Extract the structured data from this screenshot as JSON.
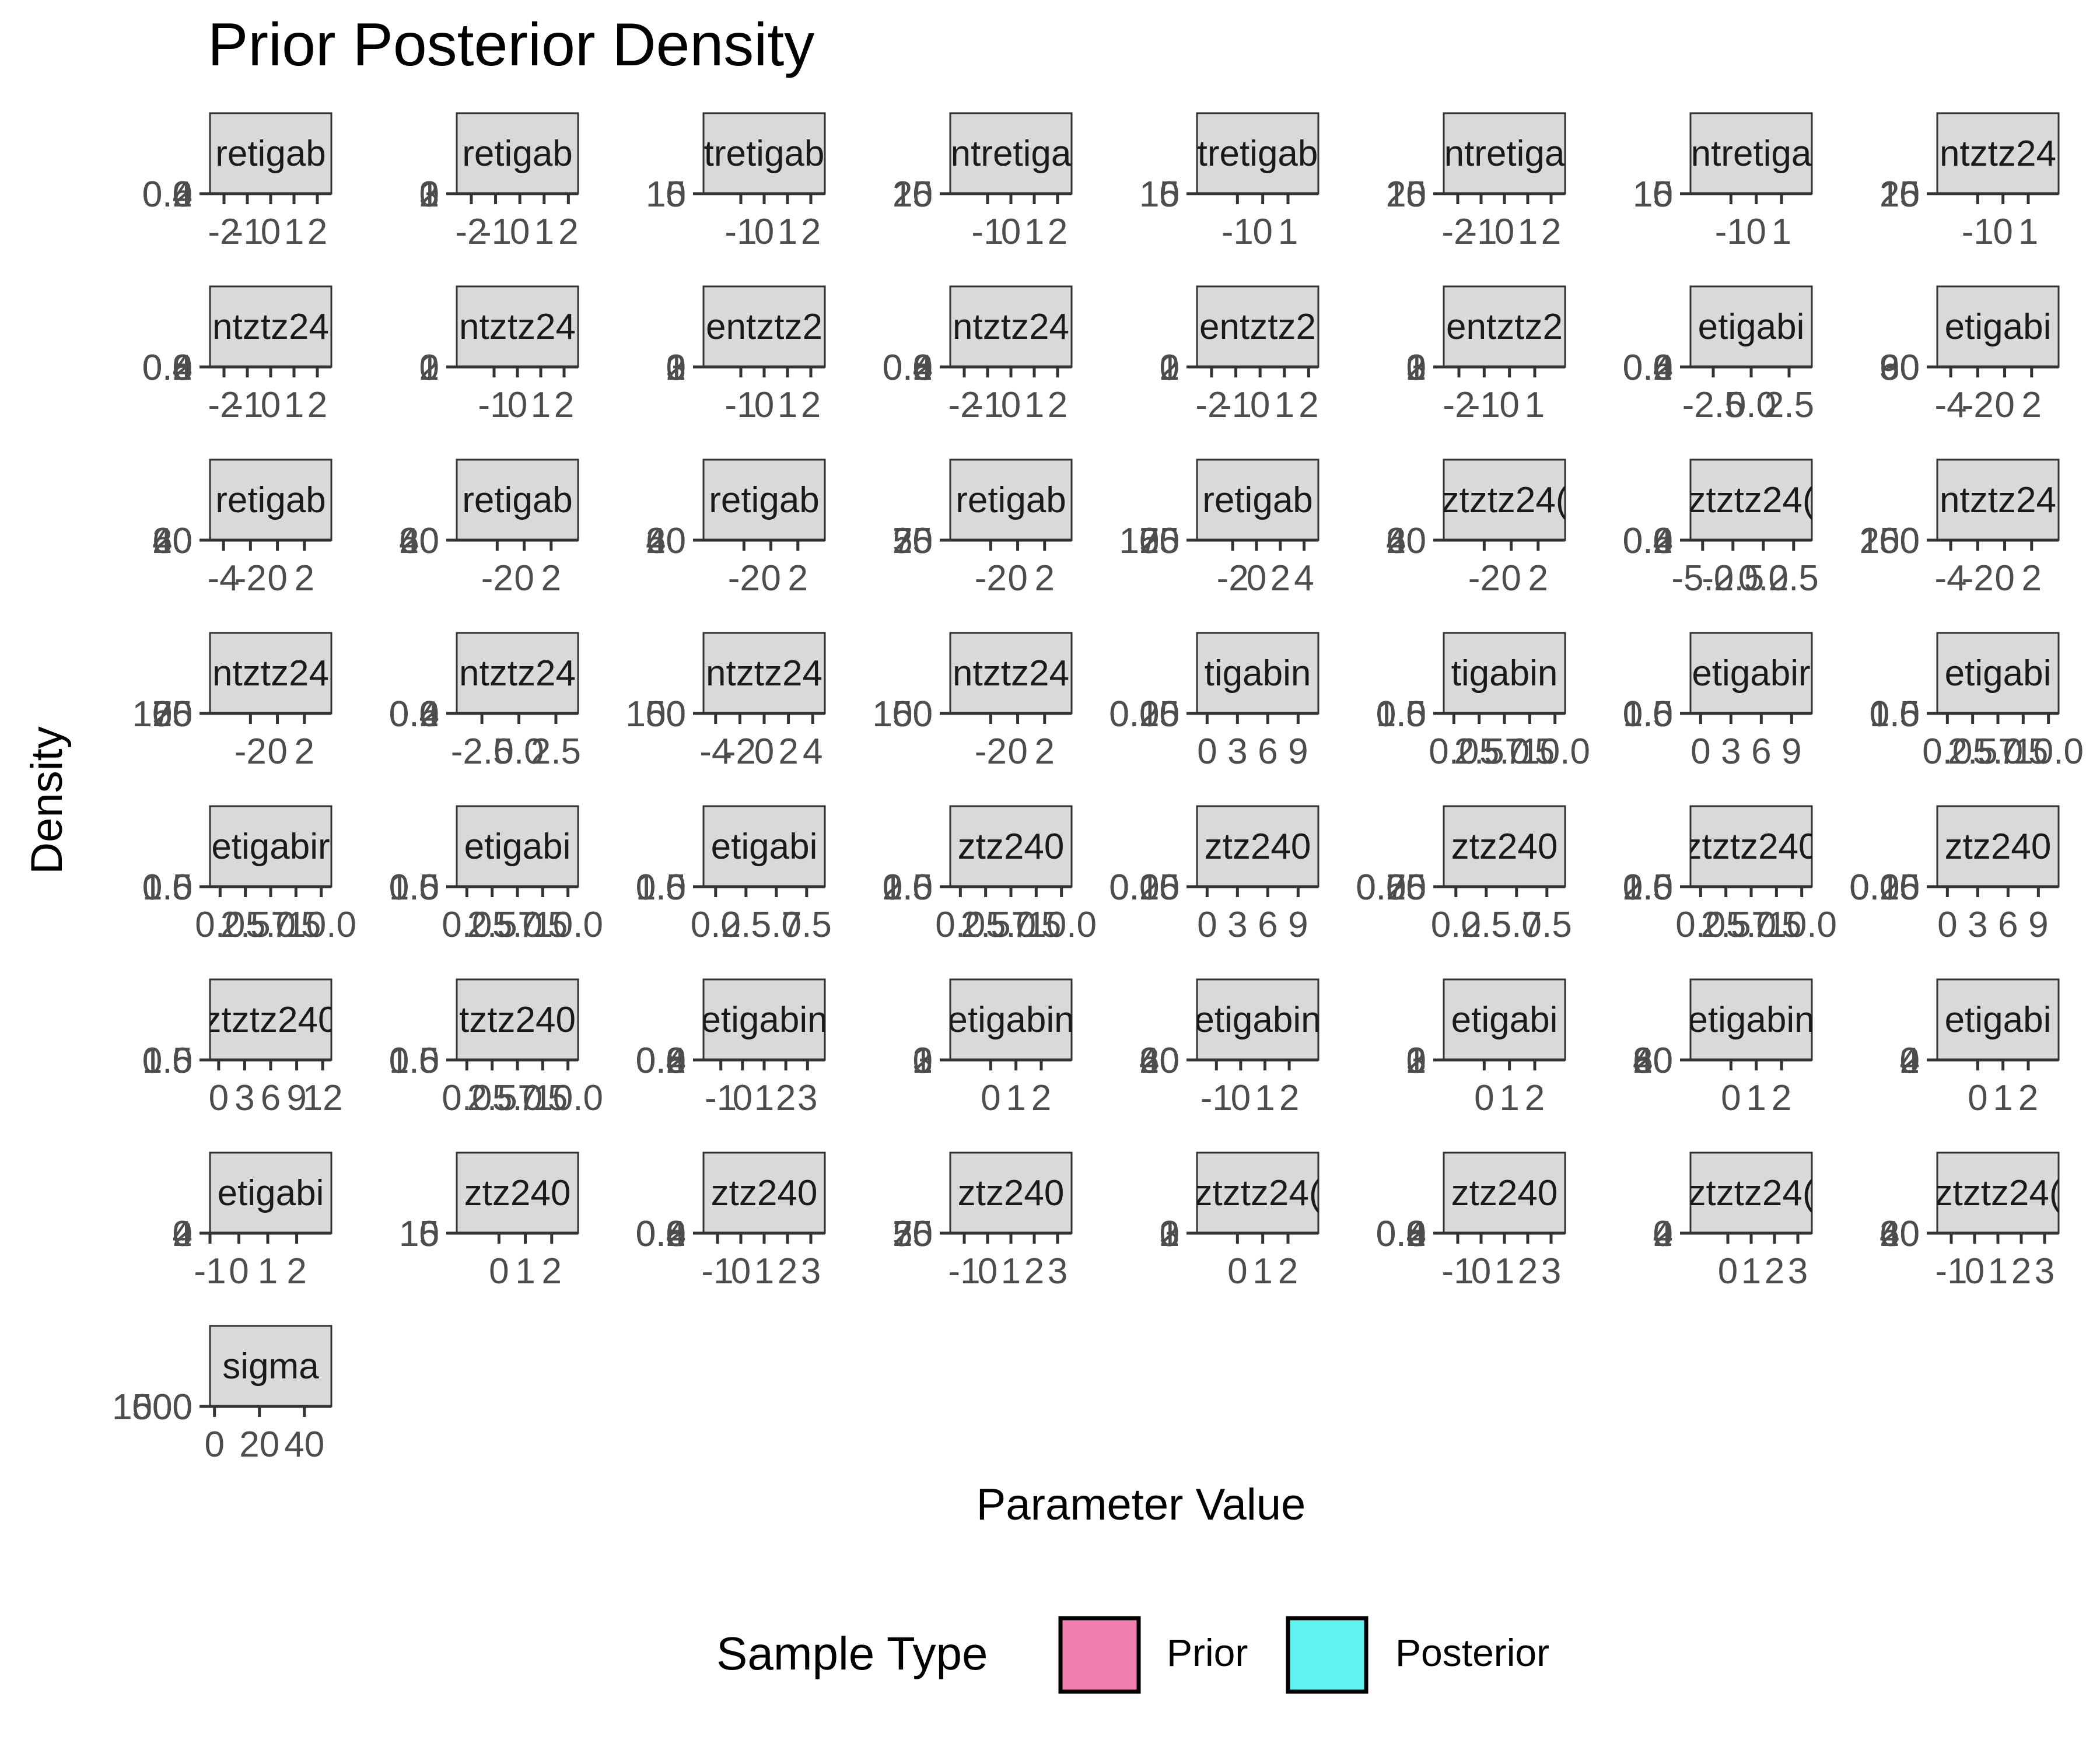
{
  "chart_data": {
    "type": "facet-density",
    "title": "Prior Posterior Density",
    "xlabel": "Parameter Value",
    "ylabel": "Density",
    "legend": {
      "title": "Sample Type",
      "placement": "bottom",
      "entries": [
        {
          "name": "Prior",
          "color": "#F080B0"
        },
        {
          "name": "Posterior",
          "color": "#5EF2F0"
        }
      ]
    },
    "series": [
      {
        "name": "Prior"
      },
      {
        "name": "Posterior"
      }
    ],
    "panels": [
      {
        "label": "retigab",
        "xticks": [
          "-2",
          "-1",
          "0",
          "1",
          "2"
        ],
        "xlim": [
          -2.6,
          2.6
        ],
        "ylabels": [
          "0.6",
          "0.4",
          "0.2",
          "0.0"
        ]
      },
      {
        "label": "retigab",
        "xticks": [
          "-2",
          "-1",
          "0",
          "1",
          "2"
        ],
        "xlim": [
          -2.6,
          2.4
        ],
        "ylabels": [
          "3",
          "2",
          "1",
          "0"
        ]
      },
      {
        "label": "tretigab",
        "xticks": [
          "-1",
          "0",
          "1",
          "2"
        ],
        "xlim": [
          -2.6,
          2.6
        ],
        "ylabels": [
          "15",
          "10",
          "5",
          "0"
        ]
      },
      {
        "label": "ntretiga",
        "xticks": [
          "-1",
          "0",
          "1",
          "2"
        ],
        "xlim": [
          -2.6,
          2.6
        ],
        "ylabels": [
          "20",
          "15",
          "10",
          "5",
          "0"
        ]
      },
      {
        "label": "tretigab",
        "xticks": [
          "-1",
          "0",
          "1"
        ],
        "xlim": [
          -2.6,
          2.2
        ],
        "ylabels": [
          "15",
          "10",
          "5",
          "0"
        ]
      },
      {
        "label": "ntretiga",
        "xticks": [
          "-2",
          "-1",
          "0",
          "1",
          "2"
        ],
        "xlim": [
          -2.6,
          2.6
        ],
        "ylabels": [
          "20",
          "15",
          "10",
          "5",
          "0"
        ]
      },
      {
        "label": "ntretiga",
        "xticks": [
          "-1",
          "0",
          "1"
        ],
        "xlim": [
          -2.6,
          2.2
        ],
        "ylabels": [
          "15",
          "10",
          "5",
          "0"
        ]
      },
      {
        "label": "ntztz24",
        "xticks": [
          "-1",
          "0",
          "1"
        ],
        "xlim": [
          -2.6,
          2.2
        ],
        "ylabels": [
          "20",
          "15",
          "10",
          "5",
          "0"
        ]
      },
      {
        "label": "ntztz24",
        "xticks": [
          "-2",
          "-1",
          "0",
          "1",
          "2"
        ],
        "xlim": [
          -2.6,
          2.6
        ],
        "ylabels": [
          "0.8",
          "0.6",
          "0.4",
          "0.2",
          "0.0"
        ]
      },
      {
        "label": "ntztz24",
        "xticks": [
          "-1",
          "0",
          "1",
          "2"
        ],
        "xlim": [
          -2.6,
          2.6
        ],
        "ylabels": [
          "2",
          "1",
          "0"
        ]
      },
      {
        "label": "entztz2",
        "xticks": [
          "-1",
          "0",
          "1",
          "2"
        ],
        "xlim": [
          -2.6,
          2.6
        ],
        "ylabels": [
          "3",
          "2",
          "1",
          "0"
        ]
      },
      {
        "label": "ntztz24",
        "xticks": [
          "-2",
          "-1",
          "0",
          "1",
          "2"
        ],
        "xlim": [
          -2.6,
          2.6
        ],
        "ylabels": [
          "0.8",
          "0.6",
          "0.4",
          "0.2",
          "0.0"
        ]
      },
      {
        "label": "entztz2",
        "xticks": [
          "-2",
          "-1",
          "0",
          "1",
          "2"
        ],
        "xlim": [
          -2.6,
          2.4
        ],
        "ylabels": [
          "2",
          "1",
          "0"
        ]
      },
      {
        "label": "entztz2",
        "xticks": [
          "-2",
          "-1",
          "0",
          "1"
        ],
        "xlim": [
          -2.6,
          2.2
        ],
        "ylabels": [
          "3",
          "2",
          "1",
          "0"
        ]
      },
      {
        "label": "etigabi",
        "xticks": [
          "-2.5",
          "0.0",
          "2.5"
        ],
        "xlim": [
          -4.0,
          4.0
        ],
        "ylabels": [
          "0.6",
          "0.4",
          "0.2",
          "0.0"
        ]
      },
      {
        "label": "etigabi",
        "xticks": [
          "-4",
          "-2",
          "0",
          "2"
        ],
        "xlim": [
          -5.0,
          4.0
        ],
        "ylabels": [
          "90",
          "60",
          "30",
          "0"
        ]
      },
      {
        "label": "retigab",
        "xticks": [
          "-4",
          "-2",
          "0",
          "2"
        ],
        "xlim": [
          -5.0,
          4.0
        ],
        "ylabels": [
          "60",
          "40",
          "20",
          "0"
        ]
      },
      {
        "label": "retigab",
        "xticks": [
          "-2",
          "0",
          "2"
        ],
        "xlim": [
          -5.0,
          4.0
        ],
        "ylabels": [
          "60",
          "40",
          "20",
          "0"
        ]
      },
      {
        "label": "retigab",
        "xticks": [
          "-2",
          "0",
          "2"
        ],
        "xlim": [
          -5.0,
          4.0
        ],
        "ylabels": [
          "60",
          "40",
          "20",
          "0"
        ]
      },
      {
        "label": "retigab",
        "xticks": [
          "-2",
          "0",
          "2"
        ],
        "xlim": [
          -5.0,
          4.0
        ],
        "ylabels": [
          "75",
          "50",
          "25",
          "0"
        ]
      },
      {
        "label": "retigab",
        "xticks": [
          "-2",
          "0",
          "2",
          "4"
        ],
        "xlim": [
          -5.0,
          5.2
        ],
        "ylabels": [
          "100",
          "75",
          "50",
          "25",
          "0"
        ]
      },
      {
        "label": "ztztz24(",
        "xticks": [
          "-2",
          "0",
          "2"
        ],
        "xlim": [
          -5.0,
          4.0
        ],
        "ylabels": [
          "60",
          "40",
          "20",
          "0"
        ]
      },
      {
        "label": "ztztz24(",
        "xticks": [
          "-5.0",
          "-2.5",
          "0.0",
          "2.5"
        ],
        "xlim": [
          -6.0,
          4.0
        ],
        "ylabels": [
          "0.6",
          "0.4",
          "0.2",
          "0.0"
        ]
      },
      {
        "label": "ntztz24",
        "xticks": [
          "-4",
          "-2",
          "0",
          "2"
        ],
        "xlim": [
          -5.0,
          4.0
        ],
        "ylabels": [
          "200",
          "150",
          "100",
          "50",
          "0"
        ]
      },
      {
        "label": "ntztz24",
        "xticks": [
          "-2",
          "0",
          "2"
        ],
        "xlim": [
          -5.0,
          4.0
        ],
        "ylabels": [
          "100",
          "75",
          "50",
          "25",
          "0"
        ]
      },
      {
        "label": "ntztz24",
        "xticks": [
          "-2.5",
          "0.0",
          "2.5"
        ],
        "xlim": [
          -4.2,
          4.0
        ],
        "ylabels": [
          "0.6",
          "0.4",
          "0.2",
          "0.0"
        ]
      },
      {
        "label": "ntztz24",
        "xticks": [
          "-4",
          "-2",
          "0",
          "2",
          "4"
        ],
        "xlim": [
          -5.0,
          5.0
        ],
        "ylabels": [
          "150",
          "100",
          "50",
          "0"
        ]
      },
      {
        "label": "ntztz24",
        "xticks": [
          "-2",
          "0",
          "2"
        ],
        "xlim": [
          -5.0,
          4.0
        ],
        "ylabels": [
          "150",
          "100",
          "50",
          "0"
        ]
      },
      {
        "label": "tigabin",
        "xticks": [
          "0",
          "3",
          "6",
          "9"
        ],
        "xlim": [
          -1.0,
          11.0
        ],
        "ylabels": [
          "0.20",
          "0.15",
          "0.10",
          "0.05",
          "0.00"
        ]
      },
      {
        "label": "tigabin",
        "xticks": [
          "0.0",
          "2.5",
          "5.0",
          "7.5",
          "10.0"
        ],
        "xlim": [
          -1.0,
          11.0
        ],
        "ylabels": [
          "1.5",
          "1.0",
          "0.5",
          "0.0"
        ]
      },
      {
        "label": "etigabir",
        "xticks": [
          "0",
          "3",
          "6",
          "9"
        ],
        "xlim": [
          -1.0,
          11.0
        ],
        "ylabels": [
          "1.5",
          "1.0",
          "0.5",
          "0.0"
        ]
      },
      {
        "label": "etigabi",
        "xticks": [
          "0.0",
          "2.5",
          "5.0",
          "7.5",
          "10.0"
        ],
        "xlim": [
          -1.0,
          11.0
        ],
        "ylabels": [
          "1.5",
          "1.0",
          "0.5",
          "0.0"
        ]
      },
      {
        "label": "etigabir",
        "xticks": [
          "0.0",
          "2.5",
          "5.0",
          "7.5",
          "10.0"
        ],
        "xlim": [
          -1.0,
          11.0
        ],
        "ylabels": [
          "1.5",
          "1.0",
          "0.5",
          "0.0"
        ]
      },
      {
        "label": "etigabi",
        "xticks": [
          "0.0",
          "2.5",
          "5.0",
          "7.5",
          "10.0"
        ],
        "xlim": [
          -1.0,
          11.0
        ],
        "ylabels": [
          "1.5",
          "1.0",
          "0.5",
          "0.0"
        ]
      },
      {
        "label": "etigabi",
        "xticks": [
          "0.0",
          "2.5",
          "5.0",
          "7.5"
        ],
        "xlim": [
          -1.0,
          9.0
        ],
        "ylabels": [
          "1.5",
          "1.0",
          "0.5",
          "0.0"
        ]
      },
      {
        "label": "ztz240",
        "xticks": [
          "0.0",
          "2.5",
          "5.0",
          "7.5",
          "10.0"
        ],
        "xlim": [
          -1.0,
          11.0
        ],
        "ylabels": [
          "2.0",
          "1.5",
          "1.0",
          "0.5",
          "0.0"
        ]
      },
      {
        "label": "ztz240",
        "xticks": [
          "0",
          "3",
          "6",
          "9"
        ],
        "xlim": [
          -1.0,
          11.0
        ],
        "ylabels": [
          "0.20",
          "0.15",
          "0.10",
          "0.05",
          "0.00"
        ]
      },
      {
        "label": "ztz240",
        "xticks": [
          "0.0",
          "2.5",
          "5.0",
          "7.5"
        ],
        "xlim": [
          -1.0,
          9.0
        ],
        "ylabels": [
          "0.75",
          "0.50",
          "0.25",
          "0.00"
        ]
      },
      {
        "label": "ztztz240",
        "xticks": [
          "0.0",
          "2.5",
          "5.0",
          "7.5",
          "10.0"
        ],
        "xlim": [
          -1.0,
          11.0
        ],
        "ylabels": [
          "2.0",
          "1.5",
          "1.0",
          "0.5",
          "0.0"
        ]
      },
      {
        "label": "ztz240",
        "xticks": [
          "0",
          "3",
          "6",
          "9"
        ],
        "xlim": [
          -1.0,
          11.0
        ],
        "ylabels": [
          "0.20",
          "0.15",
          "0.10",
          "0.05",
          "0.00"
        ]
      },
      {
        "label": "ztztz240",
        "xticks": [
          "0",
          "3",
          "6",
          "9",
          "12"
        ],
        "xlim": [
          -1.0,
          13.0
        ],
        "ylabels": [
          "1.5",
          "1.0",
          "0.5",
          "0.0"
        ]
      },
      {
        "label": "tztz240",
        "xticks": [
          "0.0",
          "2.5",
          "5.0",
          "7.5",
          "10.0"
        ],
        "xlim": [
          -1.0,
          11.0
        ],
        "ylabels": [
          "1.5",
          "1.0",
          "0.5",
          "0.0"
        ]
      },
      {
        "label": "etigabin",
        "xticks": [
          "-1",
          "0",
          "1",
          "2",
          "3"
        ],
        "xlim": [
          -1.8,
          3.8
        ],
        "ylabels": [
          "0.8",
          "0.6",
          "0.4",
          "0.2",
          "0.0"
        ]
      },
      {
        "label": "etigabin",
        "xticks": [
          "0",
          "1",
          "2"
        ],
        "xlim": [
          -1.6,
          3.2
        ],
        "ylabels": [
          "3",
          "2",
          "1",
          "0"
        ]
      },
      {
        "label": "etigabin",
        "xticks": [
          "-1",
          "0",
          "1",
          "2"
        ],
        "xlim": [
          -1.8,
          3.2
        ],
        "ylabels": [
          "60",
          "40",
          "20",
          "0"
        ]
      },
      {
        "label": "etigabi",
        "xticks": [
          "0",
          "1",
          "2"
        ],
        "xlim": [
          -1.6,
          3.2
        ],
        "ylabels": [
          "3",
          "2",
          "1",
          "0"
        ]
      },
      {
        "label": "etigabin",
        "xticks": [
          "0",
          "1",
          "2"
        ],
        "xlim": [
          -1.6,
          3.2
        ],
        "ylabels": [
          "80",
          "60",
          "40",
          "20",
          "0"
        ]
      },
      {
        "label": "etigabi",
        "xticks": [
          "0",
          "1",
          "2"
        ],
        "xlim": [
          -1.6,
          3.2
        ],
        "ylabels": [
          "4",
          "2",
          "0"
        ]
      },
      {
        "label": "etigabi",
        "xticks": [
          "-1",
          "0",
          "1",
          "2"
        ],
        "xlim": [
          -1.0,
          3.2
        ],
        "ylabels": [
          "4",
          "2",
          "0"
        ]
      },
      {
        "label": "ztz240",
        "xticks": [
          "0",
          "1",
          "2"
        ],
        "xlim": [
          -1.6,
          3.0
        ],
        "ylabels": [
          "15",
          "10",
          "5",
          "0"
        ]
      },
      {
        "label": "ztz240",
        "xticks": [
          "-1",
          "0",
          "1",
          "2",
          "3"
        ],
        "xlim": [
          -1.6,
          3.6
        ],
        "ylabels": [
          "0.8",
          "0.6",
          "0.4",
          "0.2",
          "0.0"
        ]
      },
      {
        "label": "ztz240",
        "xticks": [
          "-1",
          "0",
          "1",
          "2",
          "3"
        ],
        "xlim": [
          -1.6,
          3.6
        ],
        "ylabels": [
          "75",
          "50",
          "25",
          "0"
        ]
      },
      {
        "label": "ztztz24(",
        "xticks": [
          "0",
          "1",
          "2"
        ],
        "xlim": [
          -1.6,
          3.2
        ],
        "ylabels": [
          "3",
          "2",
          "1",
          "0"
        ]
      },
      {
        "label": "ztz240",
        "xticks": [
          "-1",
          "0",
          "1",
          "2",
          "3"
        ],
        "xlim": [
          -1.6,
          3.6
        ],
        "ylabels": [
          "0.8",
          "0.6",
          "0.4",
          "0.2",
          "0.0"
        ]
      },
      {
        "label": "ztztz24(",
        "xticks": [
          "0",
          "1",
          "2",
          "3"
        ],
        "xlim": [
          -1.6,
          3.6
        ],
        "ylabels": [
          "4",
          "2",
          "0"
        ]
      },
      {
        "label": "ztztz24(",
        "xticks": [
          "-1",
          "0",
          "1",
          "2",
          "3"
        ],
        "xlim": [
          -1.6,
          3.6
        ],
        "ylabels": [
          "60",
          "40",
          "20",
          "0"
        ]
      },
      {
        "label": "sigma",
        "xticks": [
          "0",
          "20",
          "40"
        ],
        "xlim": [
          -2,
          52
        ],
        "ylabels": [
          "1500",
          "1000",
          "500",
          "0"
        ]
      }
    ]
  }
}
